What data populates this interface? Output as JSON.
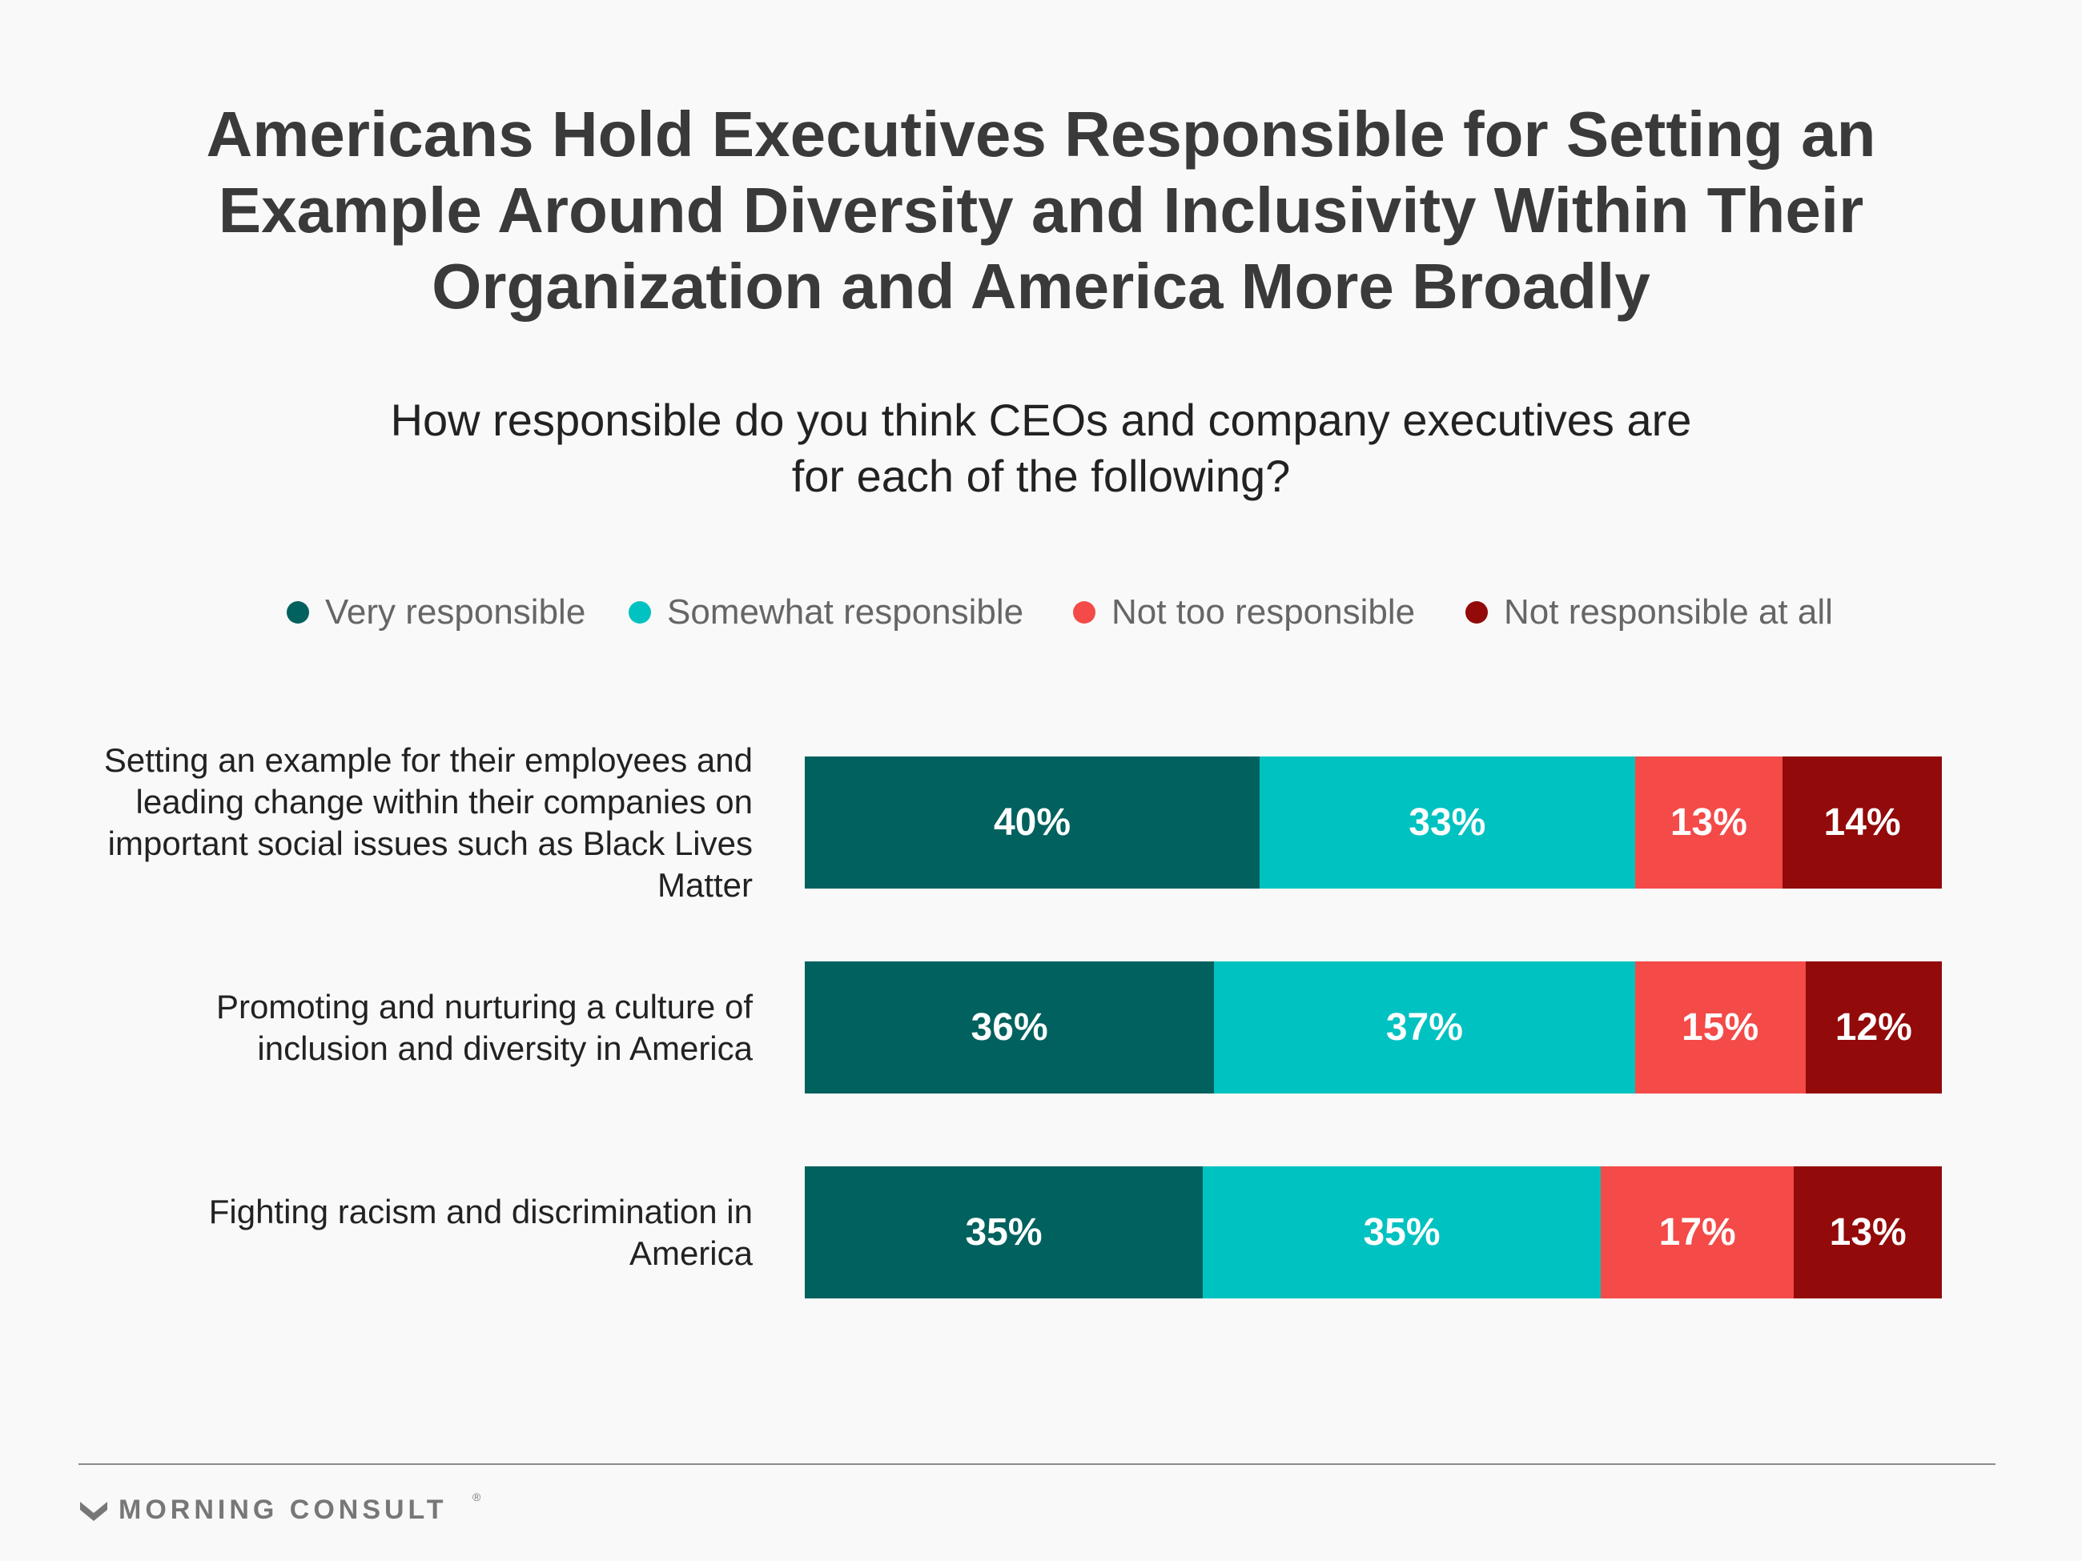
{
  "chart_data": {
    "type": "bar",
    "orientation": "horizontal",
    "stacked": true,
    "title": "Americans Hold Executives Responsible for Setting an Example Around Diversity and Inclusivity Within Their Organization and America More Broadly",
    "subtitle": "How responsible do you think CEOs and company executives are for each of the following?",
    "categories": [
      "Setting an example for their employees and leading change within their companies on important social issues such as Black Lives Matter",
      "Promoting and nurturing a culture of inclusion and diversity in America",
      "Fighting racism and discrimination in America"
    ],
    "series": [
      {
        "name": "Very responsible",
        "color": "#01615f",
        "values": [
          40,
          36,
          35
        ],
        "labels": [
          "40%",
          "36%",
          "35%"
        ]
      },
      {
        "name": "Somewhat responsible",
        "color": "#00c2c1",
        "values": [
          33,
          37,
          35
        ],
        "labels": [
          "33%",
          "37%",
          "35%"
        ]
      },
      {
        "name": "Not too responsible",
        "color": "#f44a48",
        "values": [
          13,
          15,
          17
        ],
        "labels": [
          "13%",
          "15%",
          "17%"
        ]
      },
      {
        "name": "Not responsible at all",
        "color": "#920a0a",
        "values": [
          14,
          12,
          13
        ],
        "labels": [
          "14%",
          "12%",
          "13%"
        ]
      }
    ],
    "xlim": [
      0,
      100
    ],
    "grid": false,
    "legend_position": "top"
  },
  "footer": {
    "brand": "MORNING CONSULT",
    "brand_mark": "®",
    "logo_icon": "morning-consult-m-logo"
  }
}
